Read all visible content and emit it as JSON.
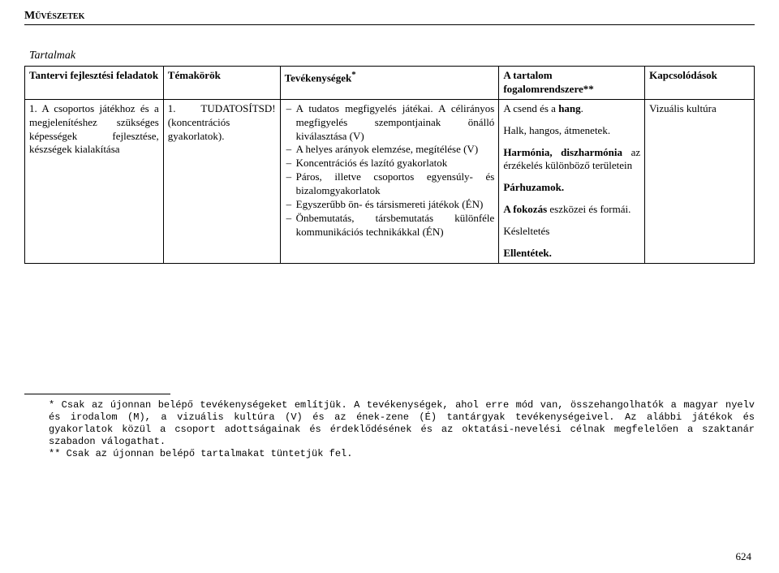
{
  "header": {
    "title": "Művészetek"
  },
  "subtitle": "Tartalmak",
  "table": {
    "headers": {
      "c1": "Tantervi fejlesztési feladatok",
      "c2": "Témakörök",
      "c3": "Tevékenységek",
      "c3_sup": "*",
      "c4a": "A tartalom",
      "c4b": "fogalomrendszere**",
      "c5": "Kapcsolódások"
    },
    "row": {
      "c1": "1. A csoportos játékhoz és a megjelenítéshez szükséges képességek fejlesztése, készségek kialakítása",
      "c2": "1. TUDATOSÍTSD! (koncentrációs gyakorlatok).",
      "c3_intro": "A tudatos megfigyelés játékai. A célirányos megfigyelés szempontjainak önálló kiválasztása (V)",
      "c3_items": [
        "A helyes arányok elemzése, megítélése (V)",
        "Koncentrációs és lazító gyakorlatok",
        "Páros, illetve csoportos egyensúly- és bizalomgyakorlatok",
        "Egyszerűbb ön- és társismereti játékok (ÉN)",
        "Önbemutatás, társbemutatás különféle kommunikációs technikákkal (ÉN)"
      ],
      "c4": [
        {
          "html": "A csend és a <b>hang</b>."
        },
        {
          "html": "Halk, hangos, átmenetek."
        },
        {
          "html": "<b>Harmónia, diszharmónia</b> az érzékelés különböző területein"
        },
        {
          "html": "<b>Párhuzamok.</b>"
        },
        {
          "html": "<b>A fokozás</b> eszközei és formái."
        },
        {
          "html": "Késleltetés"
        },
        {
          "html": "<b>Ellentétek.</b>"
        }
      ],
      "c5": "Vizuális kultúra"
    }
  },
  "footnote": {
    "star": "*",
    "p1": "Csak az újonnan belépő tevékenységeket említjük. A tevékenységek, ahol erre mód van, összehangolhatók a magyar nyelv és irodalom (M), a vizuális kultúra (V) és az ének-zene (É) tantárgyak tevékenységeivel. Az alábbi játékok és gyakorlatok közül a csoport adottságainak és érdeklődésének és az oktatási-nevelési célnak megfelelően a szaktanár szabadon válogathat.",
    "p2": "** Csak az újonnan belépő tartalmakat tüntetjük fel."
  },
  "page_number": "624"
}
